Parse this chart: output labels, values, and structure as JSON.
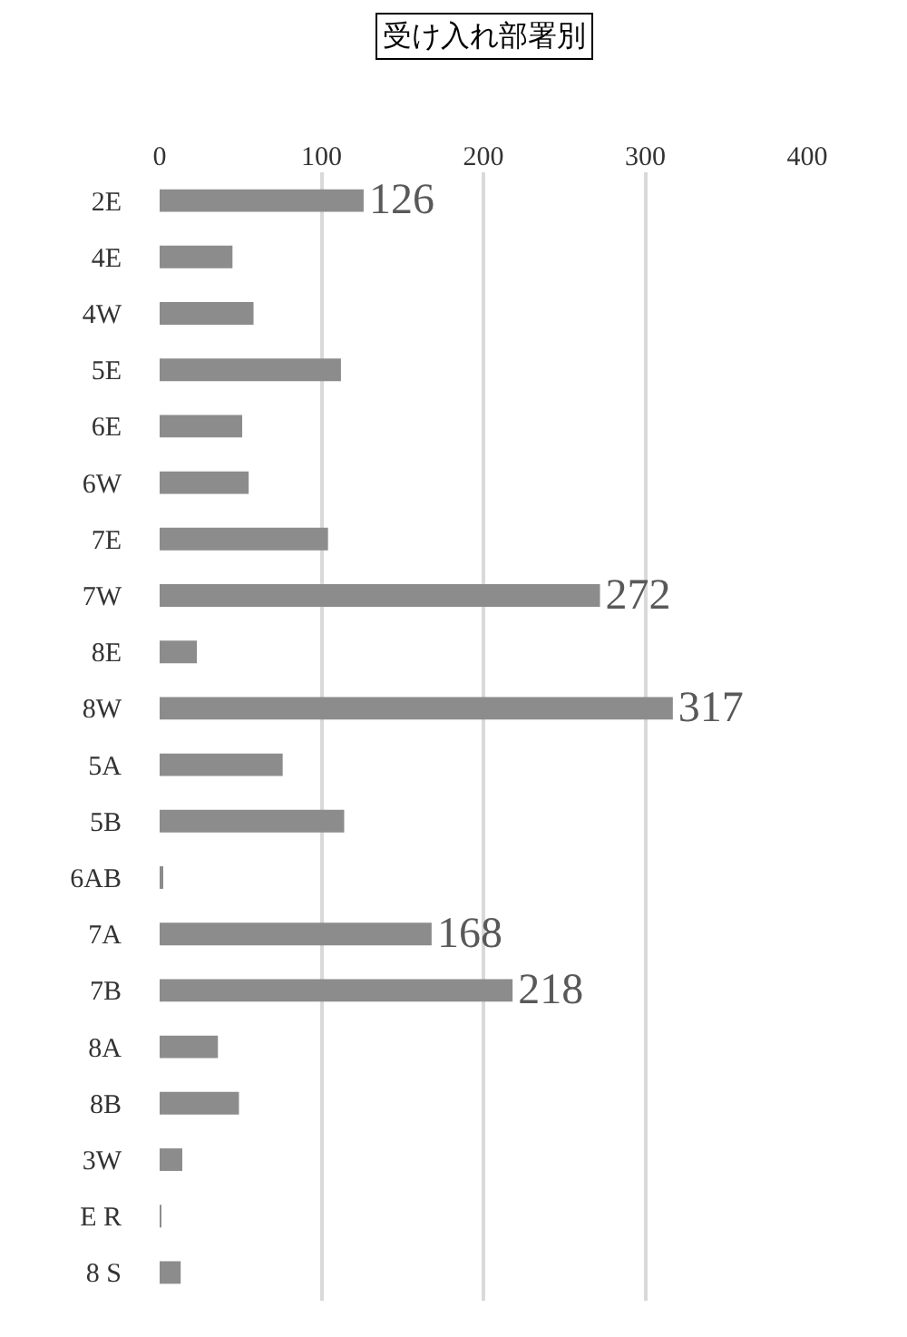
{
  "chart_data": {
    "type": "bar",
    "orientation": "horizontal",
    "title": "受け入れ部署別",
    "categories": [
      "2E",
      "4E",
      "4W",
      "5E",
      "6E",
      "6W",
      "7E",
      "7W",
      "8E",
      "8W",
      "5A",
      "5B",
      "6AB",
      "7A",
      "7B",
      "8A",
      "8B",
      "3W",
      "E R",
      "8 S"
    ],
    "values": [
      126,
      45,
      58,
      112,
      51,
      55,
      104,
      272,
      23,
      317,
      76,
      114,
      2,
      168,
      218,
      36,
      49,
      14,
      1,
      13
    ],
    "value_labels": [
      "126",
      null,
      null,
      null,
      null,
      null,
      null,
      "272",
      null,
      "317",
      null,
      null,
      null,
      "168",
      "218",
      null,
      null,
      null,
      null,
      null
    ],
    "color": "#8c8c8c",
    "xlim": [
      0,
      400
    ],
    "xticks": [
      0,
      100,
      200,
      300,
      400
    ],
    "grid": "x",
    "legend": false
  }
}
